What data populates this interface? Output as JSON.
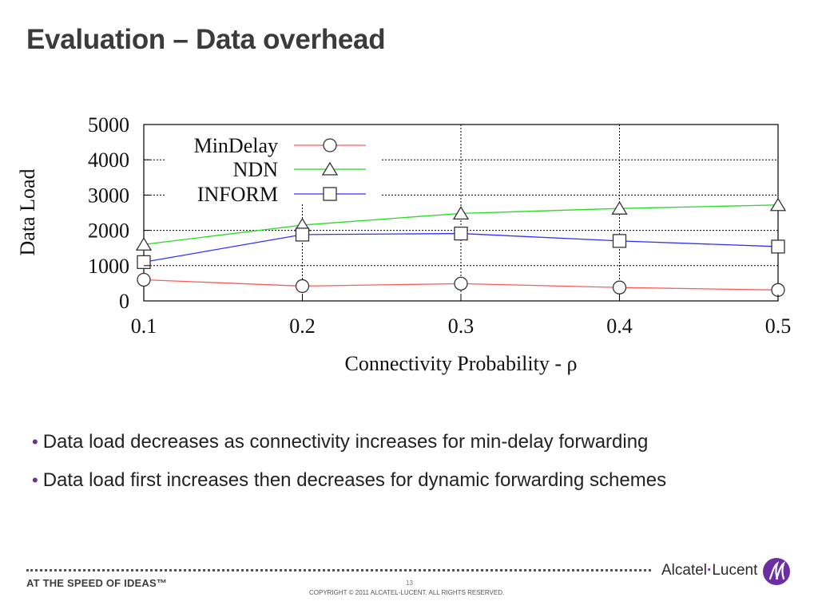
{
  "slide": {
    "title": "Evaluation – Data overhead",
    "bullets": [
      "Data load decreases as connectivity increases for min-delay forwarding",
      "Data load first increases then decreases for dynamic forwarding schemes"
    ]
  },
  "footer": {
    "tagline": "AT THE SPEED OF IDEAS™",
    "page_number": "13",
    "copyright": "COPYRIGHT © 2011 ALCATEL-LUCENT.  ALL RIGHTS RESERVED.",
    "logo_left": "Alcatel",
    "logo_dot": "·",
    "logo_right": "Lucent",
    "logo_color": "#6a2fa0"
  },
  "chart_data": {
    "type": "line",
    "title": "",
    "xlabel": "Connectivity Probability - ρ",
    "ylabel": "Data Load",
    "x": [
      0.1,
      0.2,
      0.3,
      0.4,
      0.5
    ],
    "x_tick_labels": [
      "0.1",
      "0.2",
      "0.3",
      "0.4",
      "0.5"
    ],
    "y_tick_values": [
      0,
      1000,
      2000,
      3000,
      4000,
      5000
    ],
    "y_tick_labels": [
      "0",
      "1000",
      "2000",
      "3000",
      "4000",
      "5000"
    ],
    "xlim": [
      0.1,
      0.5
    ],
    "ylim": [
      0,
      5000
    ],
    "grid": "dotted",
    "legend_position": "top-left",
    "series": [
      {
        "name": "MinDelay",
        "color": "#ff5a5a",
        "marker": "circle",
        "values": [
          600,
          420,
          490,
          380,
          310
        ]
      },
      {
        "name": "NDN",
        "color": "#22dd22",
        "marker": "triangle",
        "values": [
          1600,
          2150,
          2480,
          2620,
          2720
        ]
      },
      {
        "name": "INFORM",
        "color": "#3030ff",
        "marker": "square",
        "values": [
          1100,
          1880,
          1910,
          1700,
          1540
        ]
      }
    ]
  }
}
